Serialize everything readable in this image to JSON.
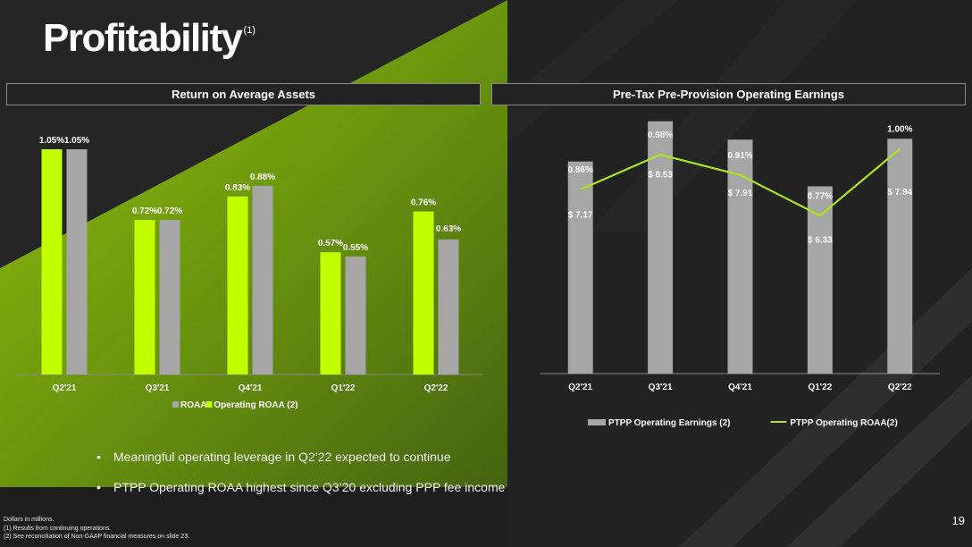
{
  "title": "Profitability",
  "title_sup": "(1)",
  "colors": {
    "green": "#c1ff00",
    "gray": "#a6a6a6",
    "line_green": "#a8e61d"
  },
  "left_panel": {
    "header": "Return on Average Assets"
  },
  "right_panel": {
    "header": "Pre-Tax Pre-Provision Operating Earnings"
  },
  "chart_data": [
    {
      "type": "bar",
      "title": "Return on Average Assets",
      "categories": [
        "Q2'21",
        "Q3'21",
        "Q4'21",
        "Q1'22",
        "Q2'22"
      ],
      "series": [
        {
          "name": "Operating ROAA (2)",
          "color": "#c1ff00",
          "values": [
            1.05,
            0.72,
            0.83,
            0.57,
            0.76
          ],
          "labels": [
            "1.05%",
            "0.72%",
            "0.83%",
            "0.57%",
            "0.76%"
          ]
        },
        {
          "name": "ROAA",
          "color": "#a6a6a6",
          "values": [
            1.05,
            0.72,
            0.88,
            0.55,
            0.63
          ],
          "labels": [
            "1.05%",
            "0.72%",
            "0.88%",
            "0.55%",
            "0.63%"
          ]
        }
      ],
      "legend": [
        {
          "name": "ROAA",
          "color": "#a6a6a6"
        },
        {
          "name": "Operating ROAA (2)",
          "color": "#c1ff00"
        }
      ],
      "legend_position": "bottom",
      "ylim": [
        0,
        1.2
      ]
    },
    {
      "type": "bar",
      "title": "Pre-Tax Pre-Provision Operating Earnings",
      "categories": [
        "Q2'21",
        "Q3'21",
        "Q4'21",
        "Q1'22",
        "Q2'22"
      ],
      "series": [
        {
          "name": "PTPP Operating Earnings (2)",
          "type": "bar",
          "color": "#a6a6a6",
          "values": [
            7.17,
            8.53,
            7.91,
            6.33,
            7.94
          ],
          "labels": [
            "$ 7.17",
            "$ 8.53",
            "$ 7.91",
            "$ 6.33",
            "$ 7.94"
          ]
        },
        {
          "name": "PTPP Operating ROAA(2)",
          "type": "line",
          "color": "#a8e61d",
          "values": [
            0.86,
            0.98,
            0.91,
            0.77,
            1.0
          ],
          "labels": [
            "0.86%",
            "0.98%",
            "0.91%",
            "0.77%",
            "1.00%"
          ]
        }
      ],
      "legend": [
        {
          "name": "PTPP Operating Earnings (2)",
          "color": "#a6a6a6",
          "kind": "bar"
        },
        {
          "name": "PTPP Operating ROAA(2)",
          "color": "#a8e61d",
          "kind": "line"
        }
      ],
      "legend_position": "bottom"
    }
  ],
  "bullets": [
    "Meaningful operating leverage in Q2’22 expected to continue",
    "PTPP Operating ROAA highest since Q3’20 excluding PPP fee income"
  ],
  "footnotes": [
    "Dollars in millions.",
    "(1) Results from continuing operations.",
    "(2) See reconciliation of Non-GAAP financial measures on slide 23."
  ],
  "page_number": "19"
}
